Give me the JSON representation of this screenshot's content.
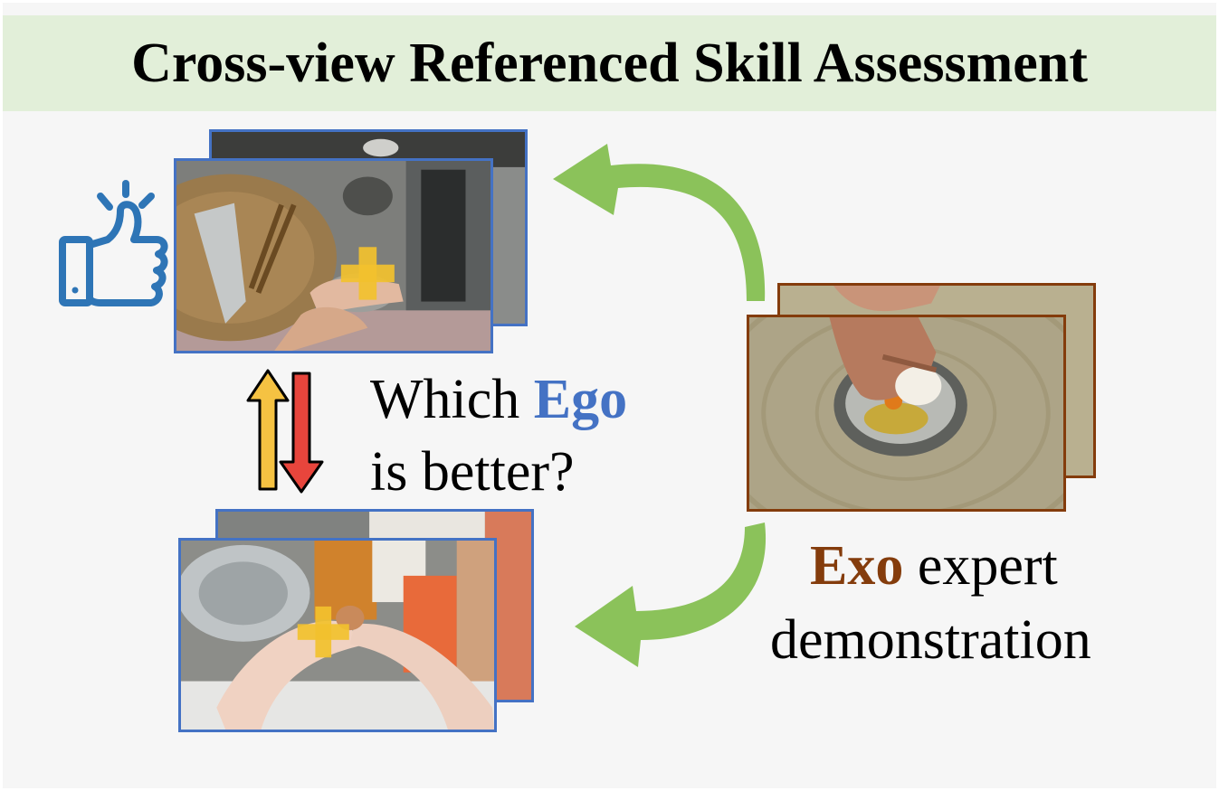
{
  "title": "Cross-view Referenced Skill Assessment",
  "question": {
    "line1_prefix": "Which ",
    "line1_highlight": "Ego",
    "line2": "is better?"
  },
  "exo_caption": {
    "highlight": "Exo",
    "line1_suffix": " expert",
    "line2": "demonstration"
  },
  "icons": {
    "thumbs_up": "thumbs-up-icon",
    "swap": "swap-arrows-icon",
    "arrow_up": "arrow-up-icon",
    "arrow_down": "arrow-down-icon",
    "curved_arrow_top": "curved-arrow-icon",
    "curved_arrow_bottom": "curved-arrow-icon",
    "crosshair": "plus-marker-icon"
  },
  "colors": {
    "title_bg": "#e2efd9",
    "ego_blue": "#4472c4",
    "exo_brown": "#843c0c",
    "arrow_green": "#8bc25a",
    "marker_yellow": "#f2c12e",
    "arrow_up_fill": "#f5c242",
    "arrow_down_fill": "#e8453c"
  }
}
